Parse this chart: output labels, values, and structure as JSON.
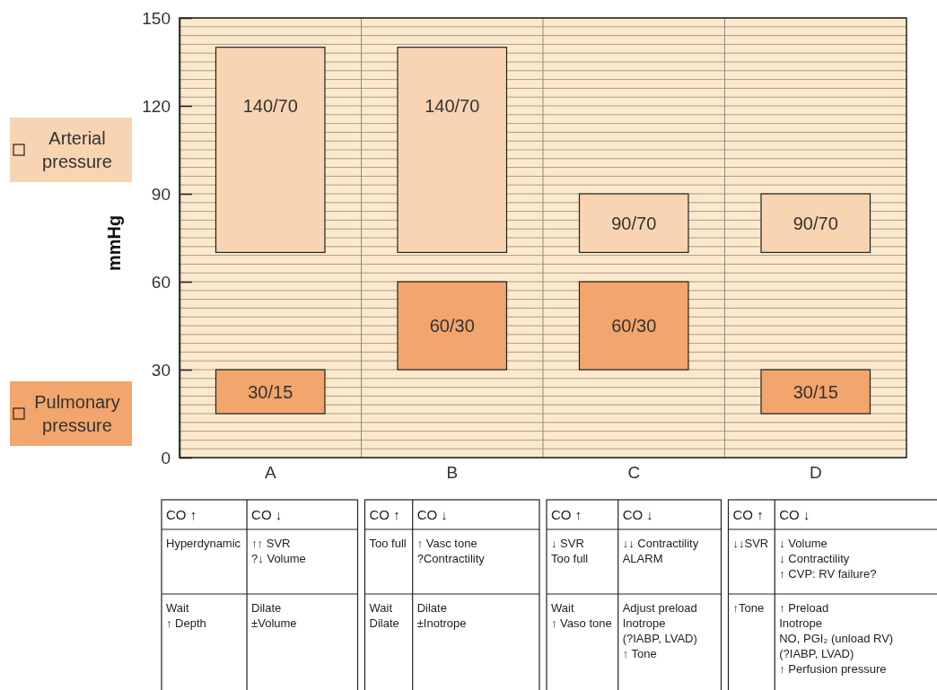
{
  "chart_data": {
    "type": "bar",
    "ylabel": "mmHg",
    "categories": [
      "A",
      "B",
      "C",
      "D"
    ],
    "series": [
      {
        "name": "Arterial pressure",
        "color": "#f9d4b2",
        "base": [
          70,
          70,
          70,
          70
        ],
        "values": [
          70,
          70,
          20,
          20
        ],
        "value_labels": [
          "140/70",
          "140/70",
          "90/70",
          "90/70"
        ]
      },
      {
        "name": "Pulmonary pressure",
        "color": "#f2a56c",
        "base": [
          15,
          30,
          30,
          15
        ],
        "values": [
          15,
          30,
          30,
          15
        ],
        "value_labels": [
          "30/15",
          "60/30",
          "60/30",
          "30/15"
        ]
      }
    ],
    "ylim": [
      0,
      150
    ],
    "yticks": [
      0,
      {
        "value": 3,
        "label": null
      },
      {
        "value": 6,
        "label": null
      },
      {
        "value": 9,
        "label": null
      },
      {
        "value": 12,
        "label": null
      },
      {
        "value": 15,
        "label": null
      },
      {
        "value": 18,
        "label": null
      },
      {
        "value": 21,
        "label": null
      },
      {
        "value": 24,
        "label": null
      },
      {
        "value": 27,
        "label": null
      },
      30,
      {
        "value": 33,
        "label": null
      },
      {
        "value": 36,
        "label": null
      },
      {
        "value": 39,
        "label": null
      },
      {
        "value": 42,
        "label": null
      },
      {
        "value": 45,
        "label": null
      },
      {
        "value": 48,
        "label": null
      },
      {
        "value": 51,
        "label": null
      },
      {
        "value": 54,
        "label": null
      },
      {
        "value": 57,
        "label": null
      },
      60,
      {
        "value": 63,
        "label": null
      },
      {
        "value": 66,
        "label": null
      },
      {
        "value": 69,
        "label": null
      },
      {
        "value": 72,
        "label": null
      },
      {
        "value": 75,
        "label": null
      },
      {
        "value": 78,
        "label": null
      },
      {
        "value": 81,
        "label": null
      },
      {
        "value": 84,
        "label": null
      },
      {
        "value": 87,
        "label": null
      },
      90,
      {
        "value": 93,
        "label": null
      },
      {
        "value": 96,
        "label": null
      },
      {
        "value": 99,
        "label": null
      },
      {
        "value": 102,
        "label": null
      },
      {
        "value": 105,
        "label": null
      },
      {
        "value": 108,
        "label": null
      },
      {
        "value": 111,
        "label": null
      },
      {
        "value": 114,
        "label": null
      },
      {
        "value": 117,
        "label": null
      },
      120,
      {
        "value": 123,
        "label": null
      },
      {
        "value": 126,
        "label": null
      },
      {
        "value": 129,
        "label": null
      },
      {
        "value": 132,
        "label": null
      },
      {
        "value": 135,
        "label": null
      },
      {
        "value": 138,
        "label": null
      },
      {
        "value": 141,
        "label": null
      },
      {
        "value": 144,
        "label": null
      },
      {
        "value": 147,
        "label": null
      },
      150
    ],
    "grid": true,
    "legend": "left",
    "annotations": [
      "CO ↑",
      "CO ↓",
      "Hyperdynamic",
      "↑↑ SVR\n?↓ Volume",
      "Wait\n↑ Depth",
      "Dilate\n±Volume",
      "CO ↑",
      "CO ↓",
      "Too full",
      "↑ Vasc tone\n?Contractility",
      "Wait\nDilate",
      "Dilate\n±Inotrope",
      "CO ↑",
      "CO ↓",
      "↓ SVR\nToo full",
      "↓↓ Contractility\nALARM",
      "Wait\n↑ Vaso tone",
      "Adjust preload\nInotrope\n(?IABP, LVAD)\n↑ Tone",
      "CO ↑",
      "CO ↓",
      "↓↓SVR",
      "↓ Volume\n↓ Contractility\n↑ CVP: RV failure?",
      "↑Tone",
      "↑ Preload\nInotrope\nNO, PGI₂ (unload RV)\n(?IABP, LVAD)\n↑ Perfusion pressure"
    ]
  }
}
